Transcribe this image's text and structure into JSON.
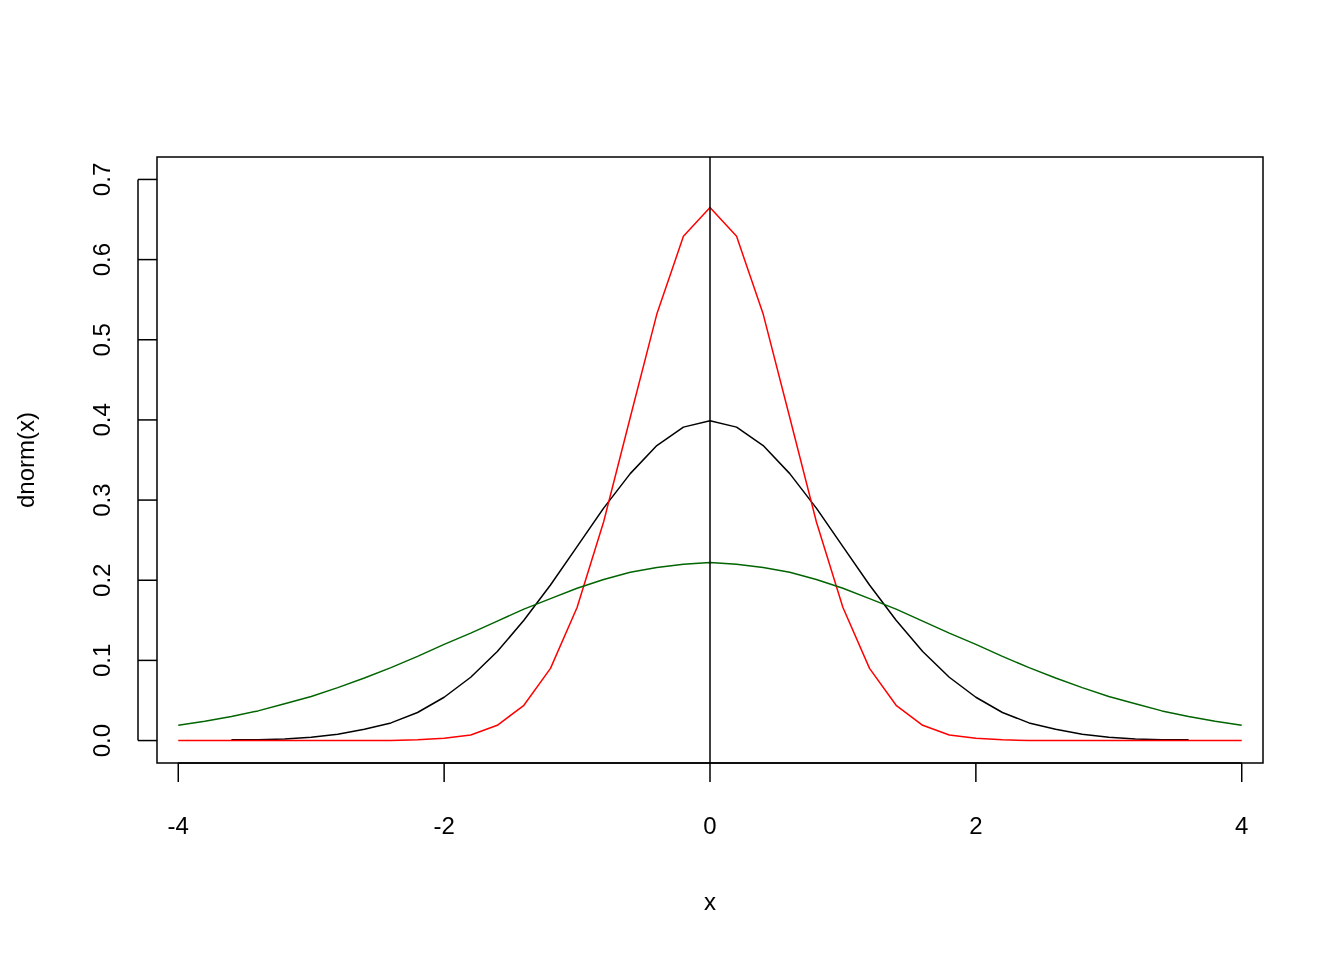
{
  "chart_data": {
    "type": "line",
    "xlabel": "x",
    "ylabel": "dnorm(x)",
    "x": [
      -4,
      -3.8,
      -3.6,
      -3.4,
      -3.2,
      -3,
      -2.8,
      -2.6,
      -2.4,
      -2.2,
      -2,
      -1.8,
      -1.6,
      -1.4,
      -1.2,
      -1,
      -0.8,
      -0.6,
      -0.4,
      -0.2,
      0,
      0.2,
      0.4,
      0.6,
      0.8,
      1,
      1.2,
      1.4,
      1.6,
      1.8,
      2,
      2.2,
      2.4,
      2.6,
      2.8,
      3,
      3.2,
      3.4,
      3.6,
      3.8,
      4
    ],
    "series": [
      {
        "color": "#000000",
        "values": [
          null,
          null,
          0.001,
          0.001,
          0.002,
          0.004,
          0.008,
          0.014,
          0.022,
          0.035,
          0.054,
          0.079,
          0.111,
          0.15,
          0.194,
          0.242,
          0.29,
          0.333,
          0.368,
          0.391,
          0.399,
          0.391,
          0.368,
          0.333,
          0.29,
          0.242,
          0.194,
          0.15,
          0.111,
          0.079,
          0.054,
          0.035,
          0.022,
          0.014,
          0.008,
          0.004,
          0.002,
          0.001,
          0.001,
          null,
          null
        ]
      },
      {
        "color": "#ff0000",
        "values": [
          0.0,
          0.0,
          0.0,
          0.0,
          0.0,
          0.0,
          0.0,
          0.0,
          0.0,
          0.001,
          0.003,
          0.007,
          0.019,
          0.044,
          0.09,
          0.166,
          0.273,
          0.403,
          0.532,
          0.629,
          0.665,
          0.629,
          0.532,
          0.403,
          0.273,
          0.166,
          0.09,
          0.044,
          0.019,
          0.007,
          0.003,
          0.001,
          0.0,
          0.0,
          0.0,
          0.0,
          0.0,
          0.0,
          0.0,
          0.0,
          0.0
        ]
      },
      {
        "color": "#006400",
        "values": [
          0.019,
          0.024,
          0.03,
          0.037,
          0.046,
          0.055,
          0.066,
          0.078,
          0.091,
          0.105,
          0.12,
          0.134,
          0.149,
          0.164,
          0.177,
          0.19,
          0.201,
          0.21,
          0.216,
          0.22,
          0.222,
          0.22,
          0.216,
          0.21,
          0.201,
          0.19,
          0.177,
          0.164,
          0.149,
          0.134,
          0.12,
          0.105,
          0.091,
          0.078,
          0.066,
          0.055,
          0.046,
          0.037,
          0.03,
          0.024,
          0.019
        ]
      }
    ],
    "xlim": [
      -4.16,
      4.16
    ],
    "ylim": [
      -0.028,
      0.728
    ],
    "xticks": [
      -4,
      -2,
      0,
      2,
      4
    ],
    "yticks": [
      {
        "value": 0,
        "label": "0.0"
      },
      {
        "value": 0.1,
        "label": "0.1"
      },
      {
        "value": 0.2,
        "label": "0.2"
      },
      {
        "value": 0.3,
        "label": "0.3"
      },
      {
        "value": 0.4,
        "label": "0.4"
      },
      {
        "value": 0.5,
        "label": "0.5"
      },
      {
        "value": 0.6,
        "label": "0.6"
      },
      {
        "value": 0.7,
        "label": "0.7"
      }
    ],
    "ref_lines": [
      {
        "axis": "x",
        "value": 0,
        "color": "#000000"
      }
    ],
    "grid": false
  }
}
